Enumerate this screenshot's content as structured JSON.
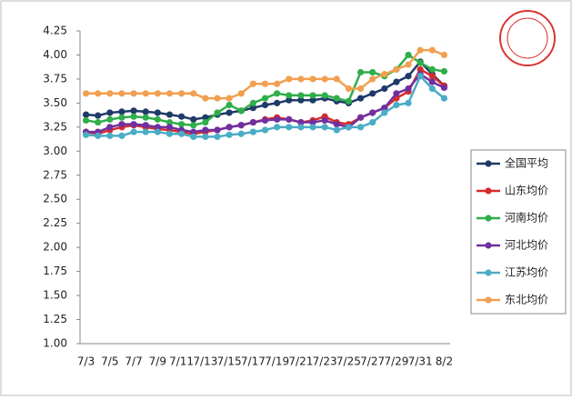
{
  "chart_data": {
    "type": "line",
    "categories": [
      "7/3",
      null,
      "7/5",
      null,
      "7/7",
      null,
      "7/9",
      null,
      "7/11",
      null,
      "7/13",
      null,
      "7/15",
      null,
      "7/17",
      null,
      "7/19",
      null,
      "7/21",
      null,
      "7/23",
      null,
      "7/25",
      null,
      "7/27",
      null,
      "7/29",
      null,
      "7/31",
      null,
      "8/2"
    ],
    "ylim": [
      1.0,
      4.25
    ],
    "yticks": [
      {
        "value": 1,
        "label": "1.00"
      },
      {
        "value": 1.25,
        "label": "1.25"
      },
      {
        "value": 1.5,
        "label": "1.50"
      },
      {
        "value": 1.75,
        "label": "1.75"
      },
      {
        "value": 2,
        "label": "2.00"
      },
      {
        "value": 2.25,
        "label": "2.25"
      },
      {
        "value": 2.5,
        "label": "2.50"
      },
      {
        "value": 2.75,
        "label": "2.75"
      },
      {
        "value": 3,
        "label": "3.00"
      },
      {
        "value": 3.25,
        "label": "3.25"
      },
      {
        "value": 3.5,
        "label": "3.50"
      },
      {
        "value": 3.75,
        "label": "3.75"
      },
      {
        "value": 4,
        "label": "4.00"
      },
      {
        "value": 4.25,
        "label": "4.25"
      }
    ],
    "grid": false,
    "legend": "right",
    "series": [
      {
        "name": "全国平均",
        "color": "#1f3a68",
        "values": [
          3.38,
          3.37,
          3.4,
          3.41,
          3.42,
          3.41,
          3.4,
          3.38,
          3.36,
          3.33,
          3.35,
          3.38,
          3.4,
          3.42,
          3.45,
          3.48,
          3.5,
          3.53,
          3.53,
          3.53,
          3.55,
          3.52,
          3.5,
          3.55,
          3.6,
          3.65,
          3.72,
          3.78,
          3.93,
          3.8,
          3.68
        ]
      },
      {
        "name": "山东均价",
        "color": "#d62c2c",
        "values": [
          3.2,
          3.18,
          3.22,
          3.25,
          3.27,
          3.25,
          3.23,
          3.22,
          3.2,
          3.18,
          3.2,
          3.22,
          3.25,
          3.27,
          3.3,
          3.33,
          3.35,
          3.33,
          3.3,
          3.32,
          3.36,
          3.3,
          3.28,
          3.35,
          3.4,
          3.45,
          3.55,
          3.62,
          3.85,
          3.78,
          3.68
        ]
      },
      {
        "name": "河南均价",
        "color": "#2fae4a",
        "values": [
          3.32,
          3.3,
          3.33,
          3.35,
          3.36,
          3.35,
          3.33,
          3.3,
          3.28,
          3.27,
          3.3,
          3.4,
          3.48,
          3.42,
          3.5,
          3.55,
          3.6,
          3.58,
          3.58,
          3.58,
          3.58,
          3.55,
          3.52,
          3.82,
          3.82,
          3.78,
          3.85,
          4.0,
          3.92,
          3.85,
          3.83
        ]
      },
      {
        "name": "河北均价",
        "color": "#7030a0",
        "values": [
          3.2,
          3.2,
          3.25,
          3.28,
          3.28,
          3.27,
          3.25,
          3.25,
          3.22,
          3.2,
          3.22,
          3.22,
          3.25,
          3.27,
          3.3,
          3.32,
          3.33,
          3.33,
          3.3,
          3.3,
          3.32,
          3.28,
          3.25,
          3.35,
          3.4,
          3.45,
          3.6,
          3.65,
          3.8,
          3.72,
          3.66
        ]
      },
      {
        "name": "江苏均价",
        "color": "#4bacc6",
        "values": [
          3.17,
          3.16,
          3.16,
          3.16,
          3.2,
          3.2,
          3.2,
          3.18,
          3.18,
          3.15,
          3.15,
          3.15,
          3.17,
          3.18,
          3.2,
          3.22,
          3.25,
          3.25,
          3.25,
          3.25,
          3.25,
          3.22,
          3.25,
          3.25,
          3.3,
          3.4,
          3.48,
          3.5,
          3.78,
          3.65,
          3.55
        ]
      },
      {
        "name": "东北均价",
        "color": "#f0a050",
        "values": [
          3.6,
          3.6,
          3.6,
          3.6,
          3.6,
          3.6,
          3.6,
          3.6,
          3.6,
          3.6,
          3.55,
          3.55,
          3.55,
          3.6,
          3.7,
          3.7,
          3.7,
          3.75,
          3.75,
          3.75,
          3.75,
          3.75,
          3.65,
          3.65,
          3.75,
          3.8,
          3.85,
          3.9,
          4.05,
          4.05,
          4.0
        ]
      }
    ]
  }
}
